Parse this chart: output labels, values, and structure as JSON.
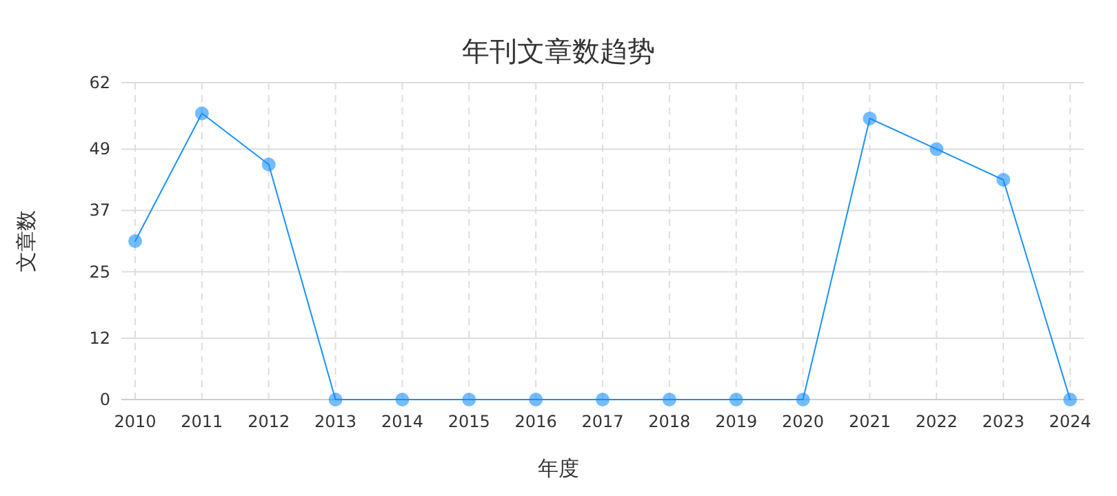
{
  "chart_data": {
    "type": "line",
    "title": "年刊文章数趋势",
    "xlabel": "年度",
    "ylabel": "文章数",
    "categories": [
      "2010",
      "2011",
      "2012",
      "2013",
      "2014",
      "2015",
      "2016",
      "2017",
      "2018",
      "2019",
      "2020",
      "2021",
      "2022",
      "2023",
      "2024"
    ],
    "series": [
      {
        "color": "#1890ff",
        "values": [
          31,
          56,
          46,
          0,
          0,
          0,
          0,
          0,
          0,
          0,
          0,
          55,
          49,
          43,
          0
        ]
      }
    ],
    "ylim": [
      0,
      62
    ],
    "yticks": [
      0,
      12,
      25,
      37,
      49,
      62
    ],
    "grid": true,
    "marker": "circle",
    "line_style": "solid"
  }
}
